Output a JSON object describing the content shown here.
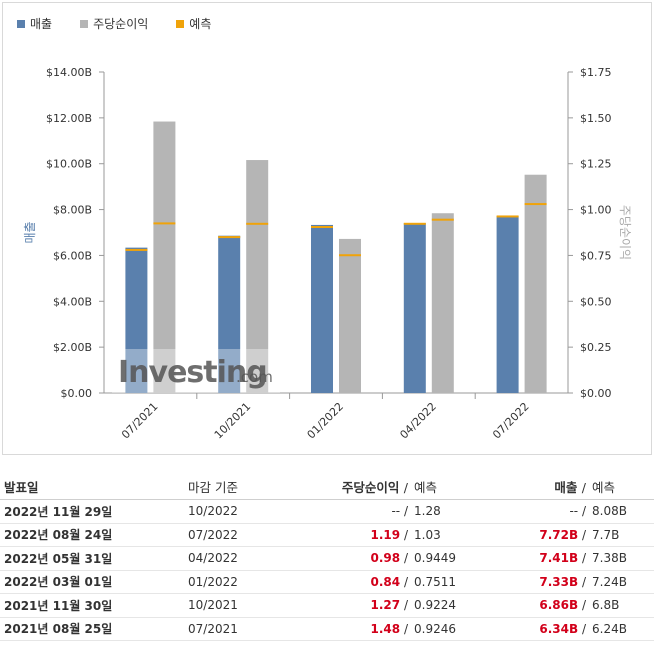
{
  "chart_data": {
    "type": "bar",
    "categories": [
      "07/2021",
      "10/2021",
      "01/2022",
      "04/2022",
      "07/2022"
    ],
    "series": [
      {
        "name": "매출",
        "axis": "left",
        "color": "#5a80ad",
        "values": [
          6.34,
          6.86,
          7.33,
          7.41,
          7.72
        ],
        "forecast": [
          6.24,
          6.8,
          7.24,
          7.38,
          7.7
        ]
      },
      {
        "name": "주당순이익",
        "axis": "right",
        "color": "#b5b5b5",
        "values": [
          1.48,
          1.27,
          0.84,
          0.98,
          1.19
        ],
        "forecast": [
          0.9246,
          0.9224,
          0.7511,
          0.9449,
          1.03
        ]
      }
    ],
    "forecast_name": "예측",
    "forecast_color": "#f0a30a",
    "ylabel_left": "매출",
    "ylabel_right": "주당순이익",
    "y_left_ticks": [
      "$0.00",
      "$2.00B",
      "$4.00B",
      "$6.00B",
      "$8.00B",
      "$10.00B",
      "$12.00B",
      "$14.00B"
    ],
    "y_right_ticks": [
      "$0.00",
      "$0.25",
      "$0.50",
      "$0.75",
      "$1.00",
      "$1.25",
      "$1.50",
      "$1.75"
    ],
    "ylim_left": [
      0,
      14
    ],
    "ylim_right": [
      0,
      1.75
    ],
    "watermark": {
      "main": "Investing",
      "suffix": ".com"
    }
  },
  "table": {
    "headers": {
      "date": "발표일",
      "period": "마감 기준",
      "eps": "주당순이익",
      "eps_f": "예측",
      "rev": "매출",
      "rev_f": "예측",
      "sep": "/"
    },
    "rows": [
      {
        "date": "2022년 11월 29일",
        "period": "10/2022",
        "eps": "--",
        "eps_f": "1.28",
        "rev": "--",
        "rev_f": "8.08B",
        "highlight": false
      },
      {
        "date": "2022년 08월 24일",
        "period": "07/2022",
        "eps": "1.19",
        "eps_f": "1.03",
        "rev": "7.72B",
        "rev_f": "7.7B",
        "highlight": true
      },
      {
        "date": "2022년 05월 31일",
        "period": "04/2022",
        "eps": "0.98",
        "eps_f": "0.9449",
        "rev": "7.41B",
        "rev_f": "7.38B",
        "highlight": true
      },
      {
        "date": "2022년 03월 01일",
        "period": "01/2022",
        "eps": "0.84",
        "eps_f": "0.7511",
        "rev": "7.33B",
        "rev_f": "7.24B",
        "highlight": true
      },
      {
        "date": "2021년 11월 30일",
        "period": "10/2021",
        "eps": "1.27",
        "eps_f": "0.9224",
        "rev": "6.86B",
        "rev_f": "6.8B",
        "highlight": true
      },
      {
        "date": "2021년 08월 25일",
        "period": "07/2021",
        "eps": "1.48",
        "eps_f": "0.9246",
        "rev": "6.34B",
        "rev_f": "6.24B",
        "highlight": true
      }
    ]
  }
}
